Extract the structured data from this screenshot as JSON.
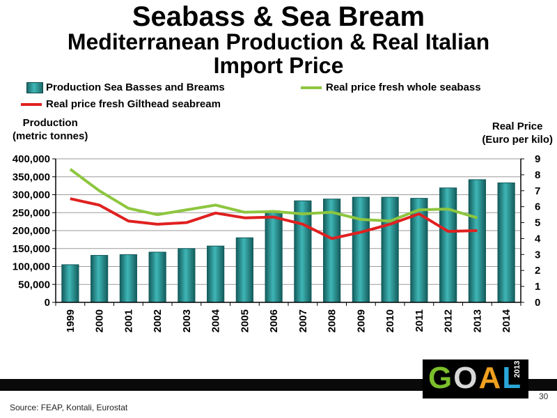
{
  "slide": {
    "title_line1": "Seabass & Sea Bream",
    "title_line2": "Mediterranean Production & Real Italian",
    "title_line3": "Import Price",
    "source": "Source: FEAP, Kontali, Eurostat",
    "page_number": "30",
    "logo": {
      "letters": [
        "G",
        "O",
        "A",
        "L"
      ],
      "year": "2013"
    }
  },
  "colors": {
    "bar": "#2a9a9a",
    "bar_dark": "#145c5c",
    "seabass_line": "#8dc63f",
    "seabream_line": "#e02020"
  },
  "chart_data": {
    "type": "bar",
    "categories": [
      "1999",
      "2000",
      "2001",
      "2002",
      "2003",
      "2004",
      "2005",
      "2006",
      "2007",
      "2008",
      "2009",
      "2010",
      "2011",
      "2012",
      "2013",
      "2014"
    ],
    "left_axis": {
      "title_line1": "Production",
      "title_line2": "(metric tonnes)",
      "ylim": [
        0,
        400000
      ],
      "ticks": [
        0,
        50000,
        100000,
        150000,
        200000,
        250000,
        300000,
        350000,
        400000
      ],
      "tick_labels": [
        "0",
        "50,000",
        "100,000",
        "150,000",
        "200,000",
        "250,000",
        "300,000",
        "350,000",
        "400,000"
      ]
    },
    "right_axis": {
      "title_line1": "Real Price",
      "title_line2": "(Euro per kilo)",
      "ylim": [
        0,
        9
      ],
      "ticks": [
        0,
        1,
        2,
        3,
        4,
        5,
        6,
        7,
        8,
        9
      ],
      "tick_labels": [
        "0",
        "1",
        "2",
        "3",
        "4",
        "5",
        "6",
        "7",
        "8",
        "9"
      ]
    },
    "grid": true,
    "series": [
      {
        "name": "Production Sea Basses and Breams",
        "kind": "bar",
        "axis": "left",
        "values": [
          105000,
          131000,
          133000,
          140000,
          150000,
          157000,
          180000,
          254000,
          283000,
          288000,
          293000,
          293000,
          290000,
          319000,
          342000,
          333000
        ]
      },
      {
        "name": "Real price fresh whole seabass",
        "kind": "line",
        "axis": "right",
        "values": [
          8.35,
          7.0,
          5.9,
          5.5,
          5.8,
          6.1,
          5.65,
          5.7,
          5.55,
          5.65,
          5.2,
          5.1,
          5.8,
          5.85,
          5.3,
          null
        ]
      },
      {
        "name": "Real price fresh Gilthead seabream",
        "kind": "line",
        "axis": "right",
        "values": [
          6.5,
          6.1,
          5.1,
          4.9,
          5.0,
          5.6,
          5.3,
          5.35,
          4.9,
          4.0,
          4.4,
          4.9,
          5.55,
          4.45,
          4.5,
          null
        ]
      }
    ],
    "legend": [
      {
        "label": "Production Sea Basses and Breams"
      },
      {
        "label": "Real price fresh whole seabass"
      },
      {
        "label": "Real price fresh Gilthead seabream"
      }
    ],
    "legend_position": "top"
  }
}
